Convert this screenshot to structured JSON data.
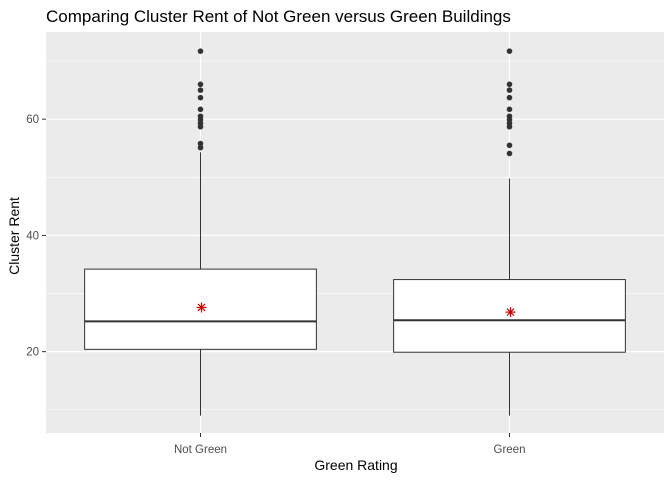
{
  "chart_data": {
    "type": "boxplot",
    "title": "Comparing Cluster Rent of Not Green versus Green Buildings",
    "xlabel": "Green Rating",
    "ylabel": "Cluster Rent",
    "categories": [
      "Not Green",
      "Green"
    ],
    "ylim": [
      6.0,
      75.0
    ],
    "y_major_ticks": [
      20,
      40,
      60
    ],
    "y_minor_ticks": [
      10,
      30,
      50,
      70
    ],
    "grid": true,
    "boxes": [
      {
        "category": "Not Green",
        "whisker_low": 9.0,
        "q1": 20.4,
        "median": 25.2,
        "q3": 34.2,
        "whisker_high": 54.3,
        "mean": 27.6,
        "outliers": [
          55.1,
          55.8,
          58.7,
          59.3,
          59.9,
          60.5,
          61.7,
          63.7,
          65.0,
          66.0,
          71.7
        ]
      },
      {
        "category": "Green",
        "whisker_low": 9.0,
        "q1": 19.9,
        "median": 25.4,
        "q3": 32.4,
        "whisker_high": 49.8,
        "mean": 26.8,
        "outliers": [
          54.1,
          55.5,
          58.7,
          59.3,
          59.9,
          60.5,
          61.7,
          63.7,
          65.0,
          66.0,
          71.7
        ]
      }
    ],
    "colors": {
      "panel": "#ebebeb",
      "grid": "#ffffff",
      "box_fill": "#ffffff",
      "box_line": "#333333",
      "outlier": "#333333",
      "mean_marker": "#cc0000"
    }
  }
}
